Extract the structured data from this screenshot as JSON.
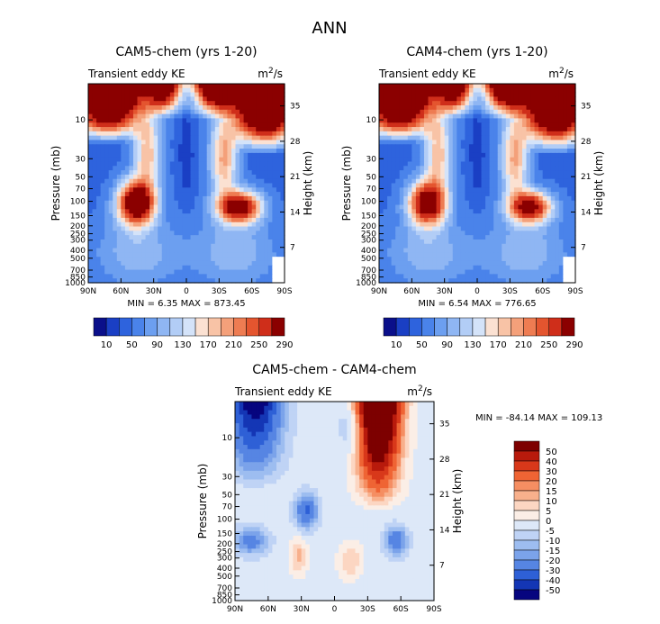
{
  "figure": {
    "title": "ANN"
  },
  "chart_data": [
    {
      "type": "heatmap",
      "id": "cam5",
      "title": "CAM5-chem (yrs 1-20)",
      "subtitle_left": "Transient eddy KE",
      "units_base": "m",
      "units_exp_text": "2",
      "units_denom": "/s",
      "ylabel": "Pressure (mb)",
      "ylabel_right": "Height (km)",
      "x_ticks": [
        "90N",
        "60N",
        "30N",
        "0",
        "30S",
        "60S",
        "90S"
      ],
      "y_ticks": [
        "10",
        "30",
        "50",
        "70",
        "100",
        "150",
        "200",
        "250",
        "300",
        "400",
        "500",
        "700",
        "850",
        "1000"
      ],
      "height_ticks": [
        "35",
        "28",
        "21",
        "14",
        "7"
      ],
      "min_label": "MIN =",
      "min_value": "6.35",
      "max_label": "MAX =",
      "max_value": "873.45",
      "levels": [
        "10",
        "50",
        "90",
        "130",
        "170",
        "210",
        "250",
        "290"
      ]
    },
    {
      "type": "heatmap",
      "id": "cam4",
      "title": "CAM4-chem (yrs 1-20)",
      "subtitle_left": "Transient eddy KE",
      "units_base": "m",
      "units_exp_text": "2",
      "units_denom": "/s",
      "ylabel": "Pressure (mb)",
      "ylabel_right": "Height (km)",
      "x_ticks": [
        "90N",
        "60N",
        "30N",
        "0",
        "30S",
        "60S",
        "90S"
      ],
      "y_ticks": [
        "10",
        "30",
        "50",
        "70",
        "100",
        "150",
        "200",
        "250",
        "300",
        "400",
        "500",
        "700",
        "850",
        "1000"
      ],
      "height_ticks": [
        "35",
        "28",
        "21",
        "14",
        "7"
      ],
      "min_label": "MIN =",
      "min_value": "6.54",
      "max_label": "MAX =",
      "max_value": "776.65",
      "levels": [
        "10",
        "50",
        "90",
        "130",
        "170",
        "210",
        "250",
        "290"
      ]
    },
    {
      "type": "heatmap",
      "id": "diff",
      "title": "CAM5-chem - CAM4-chem",
      "subtitle_left": "Transient eddy KE",
      "units_base": "m",
      "units_exp_text": "2",
      "units_denom": "/s",
      "ylabel": "Pressure (mb)",
      "ylabel_right": "Height (km)",
      "x_ticks": [
        "90N",
        "60N",
        "30N",
        "0",
        "30S",
        "60S",
        "90S"
      ],
      "y_ticks": [
        "10",
        "30",
        "50",
        "70",
        "100",
        "150",
        "200",
        "250",
        "300",
        "400",
        "500",
        "700",
        "850",
        "1000"
      ],
      "height_ticks": [
        "35",
        "28",
        "21",
        "14",
        "7"
      ],
      "min_label": "MIN =",
      "min_value": "-84.14",
      "max_label": "MAX =",
      "max_value": "109.13",
      "levels": [
        "50",
        "40",
        "30",
        "20",
        "15",
        "10",
        "5",
        "0",
        "-5",
        "-10",
        "-15",
        "-20",
        "-30",
        "-40",
        "-50"
      ]
    }
  ],
  "colors": {
    "seq": [
      "#0a0f8a",
      "#1a3fc4",
      "#2e63dd",
      "#4a83ea",
      "#6c9ff0",
      "#8fb6f3",
      "#b2cdf6",
      "#d4e3f9",
      "#fbe1d2",
      "#f8c3a6",
      "#f4a07a",
      "#ee7c52",
      "#e4552f",
      "#cf2e1a",
      "#8b0000"
    ],
    "div": [
      "#7d0000",
      "#b81a0c",
      "#d8381a",
      "#ef6434",
      "#f58e62",
      "#f8b08c",
      "#fcd6c2",
      "#fbeee6",
      "#dde8f8",
      "#bfd3f5",
      "#9dbdf0",
      "#7ba3ea",
      "#5685e3",
      "#2e60d6",
      "#1436b5",
      "#06057f"
    ]
  }
}
